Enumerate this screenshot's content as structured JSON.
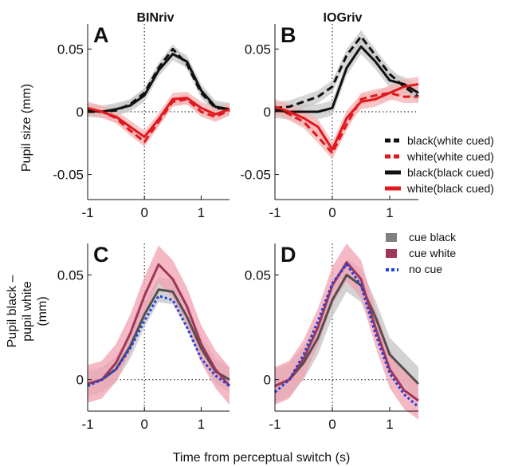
{
  "figure": {
    "col_titles": [
      "BINriv",
      "IOGriv"
    ],
    "x_axis_label": "Time from perceptual switch (s)",
    "top_y_label": "Pupil size (mm)",
    "bottom_y_label_lines": [
      "Pupil black –",
      "pupil white",
      "(mm)"
    ]
  },
  "legend_top": [
    {
      "label": "black(white cued)",
      "color": "#111111",
      "style": "dashed"
    },
    {
      "label": "white(white cued)",
      "color": "#e0181e",
      "style": "dashed"
    },
    {
      "label": "black(black cued)",
      "color": "#111111",
      "style": "solid"
    },
    {
      "label": "white(black cued)",
      "color": "#e0181e",
      "style": "solid"
    }
  ],
  "legend_bottom": [
    {
      "label": "cue black",
      "color": "#808080",
      "style": "solid"
    },
    {
      "label": "cue white",
      "color": "#a0365a",
      "style": "solid"
    },
    {
      "label": "no cue",
      "color": "#1f3fe0",
      "style": "dotted"
    }
  ],
  "chart_data": [
    {
      "type": "line",
      "panel": "A",
      "title": "BINriv",
      "xlim": [
        -1,
        1.5
      ],
      "ylim": [
        -0.07,
        0.07
      ],
      "xticks": [
        -1,
        0,
        1
      ],
      "xtick_labels": [
        "-1",
        "0",
        "1"
      ],
      "yticks": [
        -0.05,
        0,
        0.05
      ],
      "ytick_labels": [
        "-0.05",
        "0",
        "0.05"
      ],
      "x": [
        -1,
        -0.75,
        -0.5,
        -0.25,
        0,
        0.25,
        0.5,
        0.75,
        1,
        1.25,
        1.5
      ],
      "series": [
        {
          "name": "black(white cued)",
          "color": "#111111",
          "dash": "dashed",
          "band": "#c8c8c8",
          "values": [
            0,
            0,
            0.001,
            0.006,
            0.015,
            0.035,
            0.05,
            0.038,
            0.015,
            0.003,
            0.002
          ],
          "err": 0.004
        },
        {
          "name": "white(white cued)",
          "color": "#e0181e",
          "dash": "dashed",
          "band": "#f4b4b4",
          "values": [
            0.002,
            0,
            -0.005,
            -0.015,
            -0.024,
            -0.008,
            0.008,
            0.01,
            0,
            -0.004,
            0.001
          ],
          "err": 0.004
        },
        {
          "name": "black(black cued)",
          "color": "#111111",
          "dash": "solid",
          "band": "#c8c8c8",
          "values": [
            0.001,
            0,
            0.002,
            0.005,
            0.013,
            0.033,
            0.046,
            0.04,
            0.017,
            0.004,
            0.002
          ],
          "err": 0.005
        },
        {
          "name": "white(black cued)",
          "color": "#e0181e",
          "dash": "solid",
          "band": "#f4b4b4",
          "values": [
            0.003,
            0,
            -0.004,
            -0.012,
            -0.02,
            -0.006,
            0.01,
            0.011,
            0.003,
            -0.002,
            0.002
          ],
          "err": 0.005
        }
      ]
    },
    {
      "type": "line",
      "panel": "B",
      "title": "IOGriv",
      "xlim": [
        -1,
        1.5
      ],
      "ylim": [
        -0.07,
        0.07
      ],
      "xticks": [
        -1,
        0,
        1
      ],
      "xtick_labels": [
        "-1",
        "0",
        "1"
      ],
      "yticks": [
        -0.05,
        0,
        0.05
      ],
      "ytick_labels": [
        "-0.05",
        "0",
        "0.05"
      ],
      "x": [
        -1,
        -0.75,
        -0.5,
        -0.25,
        0,
        0.25,
        0.5,
        0.75,
        1,
        1.25,
        1.5
      ],
      "series": [
        {
          "name": "black(white cued)",
          "color": "#111111",
          "dash": "dashed",
          "band": "#c8c8c8",
          "values": [
            0.003,
            0.004,
            0.008,
            0.012,
            0.02,
            0.045,
            0.06,
            0.045,
            0.03,
            0.02,
            0.012
          ],
          "err": 0.005
        },
        {
          "name": "white(white cued)",
          "color": "#e0181e",
          "dash": "dashed",
          "band": "#f4b4b4",
          "values": [
            0.003,
            -0.002,
            -0.008,
            -0.02,
            -0.033,
            -0.01,
            0.01,
            0.013,
            0.015,
            0.012,
            0.012
          ],
          "err": 0.005
        },
        {
          "name": "black(black cued)",
          "color": "#111111",
          "dash": "solid",
          "band": "#c8c8c8",
          "values": [
            0.001,
            0,
            0,
            0,
            0.003,
            0.035,
            0.052,
            0.04,
            0.025,
            0.022,
            0.015
          ],
          "err": 0.006
        },
        {
          "name": "white(black cued)",
          "color": "#e0181e",
          "dash": "solid",
          "band": "#f4b4b4",
          "values": [
            0.004,
            0,
            -0.005,
            -0.012,
            -0.03,
            -0.005,
            0.008,
            0.01,
            0.015,
            0.02,
            0.022
          ],
          "err": 0.006
        }
      ]
    },
    {
      "type": "line",
      "panel": "C",
      "xlim": [
        -1,
        1.5
      ],
      "ylim": [
        -0.015,
        0.065
      ],
      "xticks": [
        -1,
        0,
        1
      ],
      "xtick_labels": [
        "-1",
        "0",
        "1"
      ],
      "yticks": [
        0,
        0.05
      ],
      "ytick_labels": [
        "0",
        "0.05"
      ],
      "x": [
        -1,
        -0.75,
        -0.5,
        -0.25,
        0,
        0.25,
        0.5,
        0.75,
        1,
        1.25,
        1.5
      ],
      "series": [
        {
          "name": "cue black",
          "color": "#505050",
          "dash": "solid",
          "band": "#c4c4c4",
          "values": [
            -0.002,
            0,
            0.005,
            0.016,
            0.031,
            0.043,
            0.042,
            0.03,
            0.015,
            0.004,
            0
          ],
          "err": 0.006
        },
        {
          "name": "cue white",
          "color": "#a0365a",
          "dash": "solid",
          "band": "#f0a2b0",
          "values": [
            -0.002,
            0,
            0.008,
            0.022,
            0.04,
            0.055,
            0.048,
            0.035,
            0.017,
            0.005,
            -0.003
          ],
          "err": 0.009
        },
        {
          "name": "no cue",
          "color": "#1f3fe0",
          "dash": "dotted",
          "band": null,
          "values": [
            -0.003,
            0,
            0.005,
            0.015,
            0.028,
            0.04,
            0.038,
            0.025,
            0.01,
            0.002,
            -0.003
          ],
          "err": 0
        }
      ]
    },
    {
      "type": "line",
      "panel": "D",
      "xlim": [
        -1,
        1.5
      ],
      "ylim": [
        -0.015,
        0.065
      ],
      "xticks": [
        -1,
        0,
        1
      ],
      "xtick_labels": [
        "-1",
        "0",
        "1"
      ],
      "yticks": [
        0,
        0.05
      ],
      "ytick_labels": [
        "0",
        "0.05"
      ],
      "x": [
        -1,
        -0.75,
        -0.5,
        -0.25,
        0,
        0.25,
        0.5,
        0.75,
        1,
        1.25,
        1.5
      ],
      "series": [
        {
          "name": "cue black",
          "color": "#505050",
          "dash": "solid",
          "band": "#c4c4c4",
          "values": [
            -0.003,
            0,
            0.008,
            0.02,
            0.038,
            0.05,
            0.045,
            0.03,
            0.012,
            0.005,
            -0.002
          ],
          "err": 0.008
        },
        {
          "name": "cue white",
          "color": "#a0365a",
          "dash": "solid",
          "band": "#f0a2b0",
          "values": [
            -0.003,
            0,
            0.01,
            0.025,
            0.045,
            0.056,
            0.048,
            0.025,
            0.005,
            -0.005,
            -0.01
          ],
          "err": 0.009
        },
        {
          "name": "no cue",
          "color": "#1f3fe0",
          "dash": "dotted",
          "band": null,
          "values": [
            -0.006,
            0,
            0.012,
            0.028,
            0.046,
            0.055,
            0.045,
            0.022,
            0.003,
            -0.007,
            -0.013
          ],
          "err": 0
        }
      ]
    }
  ]
}
